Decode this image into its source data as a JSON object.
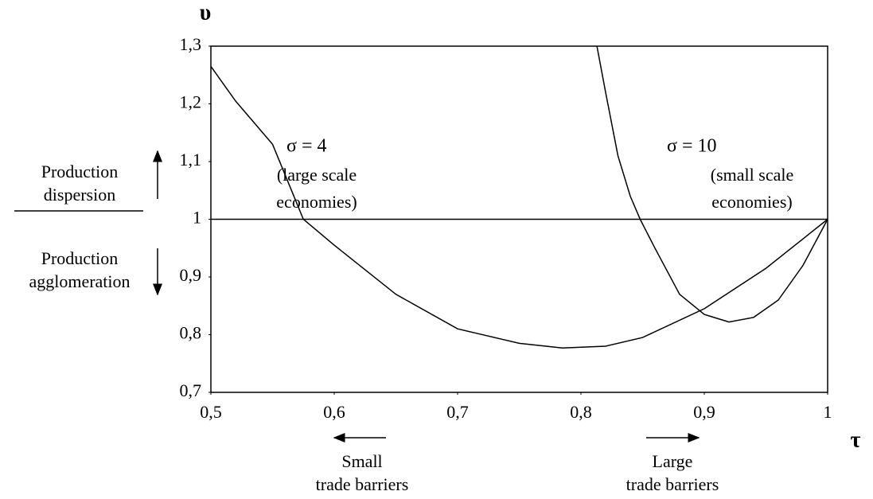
{
  "chart_data": {
    "type": "line",
    "x_label": "τ",
    "y_label": "υ",
    "xlim": [
      0.5,
      1
    ],
    "ylim": [
      0.7,
      1.3
    ],
    "xticks": [
      {
        "value": 0.5,
        "label": "0,5"
      },
      {
        "value": 0.6,
        "label": "0,6"
      },
      {
        "value": 0.7,
        "label": "0,7"
      },
      {
        "value": 0.8,
        "label": "0,8"
      },
      {
        "value": 0.9,
        "label": "0,9"
      },
      1
    ],
    "yticks": [
      {
        "value": 0.7,
        "label": "0,7"
      },
      {
        "value": 0.8,
        "label": "0,8"
      },
      {
        "value": 0.9,
        "label": "0,9"
      },
      1,
      {
        "value": 1.1,
        "label": "1,1"
      },
      {
        "value": 1.2,
        "label": "1,2"
      },
      {
        "value": 1.3,
        "label": "1,3"
      }
    ],
    "hline": 1,
    "series": [
      {
        "name": "σ = 4",
        "note": [
          "(large scale",
          "economies)"
        ],
        "color": "#000000",
        "x": [
          0.5,
          0.52,
          0.55,
          0.575,
          0.6,
          0.65,
          0.7,
          0.75,
          0.785,
          0.82,
          0.85,
          0.9,
          0.95,
          1
        ],
        "values": [
          1.265,
          1.205,
          1.13,
          1.0,
          0.955,
          0.87,
          0.81,
          0.785,
          0.777,
          0.78,
          0.795,
          0.845,
          0.915,
          1.0
        ]
      },
      {
        "name": "σ = 10",
        "note": [
          "(small scale",
          "economies)"
        ],
        "color": "#000000",
        "x": [
          0.813,
          0.82,
          0.83,
          0.84,
          0.848,
          0.86,
          0.88,
          0.9,
          0.92,
          0.94,
          0.96,
          0.98,
          1
        ],
        "values": [
          1.3,
          1.22,
          1.11,
          1.04,
          1.0,
          0.95,
          0.87,
          0.835,
          0.822,
          0.83,
          0.86,
          0.92,
          1.0
        ]
      }
    ],
    "annotations": [
      {
        "lines": [
          "Production",
          "dispersion"
        ]
      },
      {
        "lines": [
          "Production",
          "agglomeration"
        ]
      },
      {
        "lines": [
          "Small",
          "trade barriers"
        ]
      },
      {
        "lines": [
          "Large",
          "trade barriers"
        ]
      }
    ]
  }
}
